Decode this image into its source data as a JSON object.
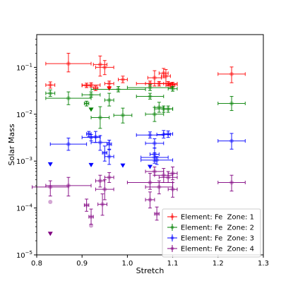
{
  "chart_data": {
    "type": "scatter",
    "title": "",
    "xlabel": "Stretch",
    "ylabel": "Solar Mass",
    "xlim": [
      0.8,
      1.3
    ],
    "ylim": [
      1e-05,
      0.5
    ],
    "yscale": "log",
    "xticks": [
      {
        "value": 0.8,
        "label": "0.8"
      },
      {
        "value": 0.9,
        "label": "0.9"
      },
      {
        "value": 1.0,
        "label": "1.0"
      },
      {
        "value": 1.1,
        "label": "1.1"
      },
      {
        "value": 1.2,
        "label": "1.2"
      },
      {
        "value": 1.3,
        "label": "1.3"
      }
    ],
    "yticks": [
      {
        "value": 1e-05,
        "base": "10",
        "exp": "−5"
      },
      {
        "value": 0.0001,
        "base": "10",
        "exp": "−4"
      },
      {
        "value": 0.001,
        "base": "10",
        "exp": "−3"
      },
      {
        "value": 0.01,
        "base": "10",
        "exp": "−2"
      },
      {
        "value": 0.1,
        "base": "10",
        "exp": "−1"
      }
    ],
    "grid": false,
    "legend_position": "lower right",
    "series": [
      {
        "name": "Element: Fe  Zone: 1",
        "color": "#ff0000",
        "points": [
          {
            "x": 0.83,
            "y": 0.042,
            "xerr": 0.01,
            "yerr": [
              0.006,
              0.007
            ]
          },
          {
            "x": 0.87,
            "y": 0.12,
            "xerr": 0.05,
            "yerr": [
              0.04,
              0.08
            ]
          },
          {
            "x": 0.91,
            "y": 0.041,
            "xerr": 0.01,
            "yerr": [
              0.004,
              0.005
            ]
          },
          {
            "x": 0.92,
            "y": 0.042,
            "xerr": 0.02,
            "yerr": [
              0.004,
              0.005
            ]
          },
          {
            "x": 0.93,
            "y": 0.036,
            "xerr": 0.005,
            "yerr": [
              0.004,
              0.004
            ]
          },
          {
            "x": 0.94,
            "y": 0.115,
            "xerr": 0.015,
            "yerr": [
              0.05,
              0.06
            ]
          },
          {
            "x": 0.95,
            "y": 0.1,
            "xerr": 0.02,
            "yerr": [
              0.03,
              0.04
            ]
          },
          {
            "x": 0.96,
            "y": 0.045,
            "xerr": 0.01,
            "yerr": [
              0.006,
              0.006
            ]
          },
          {
            "x": 0.99,
            "y": 0.055,
            "xerr": 0.01,
            "yerr": [
              0.008,
              0.01
            ]
          },
          {
            "x": 1.05,
            "y": 0.045,
            "xerr": 0.03,
            "yerr": [
              0.005,
              0.006
            ]
          },
          {
            "x": 1.06,
            "y": 0.06,
            "xerr": 0.015,
            "yerr": [
              0.02,
              0.025
            ]
          },
          {
            "x": 1.07,
            "y": 0.045,
            "xerr": 0.03,
            "yerr": [
              0.005,
              0.005
            ]
          },
          {
            "x": 1.08,
            "y": 0.075,
            "xerr": 0.01,
            "yerr": [
              0.015,
              0.02
            ]
          },
          {
            "x": 1.085,
            "y": 0.065,
            "xerr": 0.01,
            "yerr": [
              0.02,
              0.025
            ]
          },
          {
            "x": 1.09,
            "y": 0.045,
            "xerr": 0.02,
            "yerr": [
              0.005,
              0.005
            ]
          },
          {
            "x": 1.095,
            "y": 0.042,
            "xerr": 0.01,
            "yerr": [
              0.005,
              0.005
            ]
          },
          {
            "x": 1.1,
            "y": 0.043,
            "xerr": 0.01,
            "yerr": [
              0.005,
              0.005
            ]
          },
          {
            "x": 1.23,
            "y": 0.072,
            "xerr": 0.03,
            "yerr": [
              0.025,
              0.03
            ]
          }
        ],
        "upper_limits": [
          {
            "x": 0.96,
            "y": 0.035
          }
        ]
      },
      {
        "name": "Element: Fe  Zone: 2",
        "color": "#008000",
        "points": [
          {
            "x": 0.83,
            "y": 0.028,
            "xerr": 0.01,
            "yerr": [
              0.004,
              0.005
            ]
          },
          {
            "x": 0.87,
            "y": 0.022,
            "xerr": 0.05,
            "yerr": [
              0.006,
              0.008
            ]
          },
          {
            "x": 0.91,
            "y": 0.017,
            "xerr": 0.005,
            "yerr": [
              0.002,
              0.002
            ]
          },
          {
            "x": 0.92,
            "y": 0.026,
            "xerr": 0.02,
            "yerr": [
              0.003,
              0.004
            ]
          },
          {
            "x": 0.94,
            "y": 0.0085,
            "xerr": 0.02,
            "yerr": [
              0.0035,
              0.006
            ]
          },
          {
            "x": 0.96,
            "y": 0.02,
            "xerr": 0.01,
            "yerr": [
              0.005,
              0.008
            ]
          },
          {
            "x": 0.98,
            "y": 0.034,
            "xerr": 0.06,
            "yerr": [
              0.004,
              0.005
            ]
          },
          {
            "x": 0.99,
            "y": 0.0095,
            "xerr": 0.02,
            "yerr": [
              0.003,
              0.004
            ]
          },
          {
            "x": 1.05,
            "y": 0.037,
            "xerr": 0.05,
            "yerr": [
              0.005,
              0.006
            ]
          },
          {
            "x": 1.05,
            "y": 0.024,
            "xerr": 0.03,
            "yerr": [
              0.003,
              0.004
            ]
          },
          {
            "x": 1.06,
            "y": 0.01,
            "xerr": 0.02,
            "yerr": [
              0.003,
              0.004
            ]
          },
          {
            "x": 1.07,
            "y": 0.014,
            "xerr": 0.01,
            "yerr": [
              0.003,
              0.004
            ]
          },
          {
            "x": 1.08,
            "y": 0.013,
            "xerr": 0.02,
            "yerr": [
              0.002,
              0.002
            ]
          },
          {
            "x": 1.09,
            "y": 0.013,
            "xerr": 0.01,
            "yerr": [
              0.002,
              0.002
            ]
          },
          {
            "x": 1.1,
            "y": 0.035,
            "xerr": 0.01,
            "yerr": [
              0.004,
              0.004
            ]
          },
          {
            "x": 1.23,
            "y": 0.017,
            "xerr": 0.03,
            "yerr": [
              0.005,
              0.007
            ]
          }
        ],
        "upper_limits": [
          {
            "x": 0.92,
            "y": 0.0125
          }
        ]
      },
      {
        "name": "Element: Fe  Zone: 3",
        "color": "#0000ff",
        "points": [
          {
            "x": 0.87,
            "y": 0.0023,
            "xerr": 0.04,
            "yerr": [
              0.0006,
              0.0008
            ]
          },
          {
            "x": 0.915,
            "y": 0.0038,
            "xerr": 0.005,
            "yerr": [
              0.0005,
              0.0005
            ]
          },
          {
            "x": 0.92,
            "y": 0.0032,
            "xerr": 0.02,
            "yerr": [
              0.0005,
              0.0005
            ]
          },
          {
            "x": 0.93,
            "y": 0.0033,
            "xerr": 0.01,
            "yerr": [
              0.0008,
              0.001
            ]
          },
          {
            "x": 0.94,
            "y": 0.0025,
            "xerr": 0.02,
            "yerr": [
              0.0008,
              0.001
            ]
          },
          {
            "x": 0.96,
            "y": 0.0023,
            "xerr": 0.005,
            "yerr": [
              0.0005,
              0.0005
            ]
          },
          {
            "x": 0.95,
            "y": 0.0015,
            "xerr": 0.005,
            "yerr": [
              0.0005,
              0.0006
            ]
          },
          {
            "x": 0.96,
            "y": 0.00125,
            "xerr": 0.01,
            "yerr": [
              0.0004,
              0.0005
            ]
          },
          {
            "x": 1.05,
            "y": 0.0036,
            "xerr": 0.03,
            "yerr": [
              0.0005,
              0.0006
            ]
          },
          {
            "x": 1.06,
            "y": 0.0024,
            "xerr": 0.02,
            "yerr": [
              0.0005,
              0.0006
            ]
          },
          {
            "x": 1.06,
            "y": 0.0014,
            "xerr": 0.01,
            "yerr": [
              0.0004,
              0.0005
            ]
          },
          {
            "x": 1.06,
            "y": 0.0012,
            "xerr": 0.03,
            "yerr": [
              0.0003,
              0.0003
            ]
          },
          {
            "x": 1.065,
            "y": 0.00105,
            "xerr": 0.035,
            "yerr": [
              0.0002,
              0.0002
            ]
          },
          {
            "x": 1.08,
            "y": 0.0037,
            "xerr": 0.015,
            "yerr": [
              0.0006,
              0.0008
            ]
          },
          {
            "x": 1.09,
            "y": 0.0038,
            "xerr": 0.01,
            "yerr": [
              0.0006,
              0.0006
            ]
          },
          {
            "x": 1.23,
            "y": 0.0027,
            "xerr": 0.03,
            "yerr": [
              0.0009,
              0.0012
            ]
          }
        ],
        "upper_limits": [
          {
            "x": 0.83,
            "y": 0.00085
          },
          {
            "x": 0.92,
            "y": 0.00082
          },
          {
            "x": 0.99,
            "y": 0.0008
          },
          {
            "x": 1.05,
            "y": 0.00075
          }
        ]
      },
      {
        "name": "Element: Fe  Zone: 4",
        "color": "#800080",
        "points": [
          {
            "x": 0.83,
            "y": 0.00028,
            "xerr": 0.04,
            "yerr": [
              0.0001,
              0.0001
            ]
          },
          {
            "x": 0.83,
            "y": 0.000135,
            "xerr": 0.0,
            "yerr": [
              0.0,
              0.0
            ]
          },
          {
            "x": 0.87,
            "y": 0.0003,
            "xerr": 0.05,
            "yerr": [
              0.00012,
              0.00015
            ]
          },
          {
            "x": 0.91,
            "y": 0.000115,
            "xerr": 0.005,
            "yerr": [
              3e-05,
              4e-05
            ]
          },
          {
            "x": 0.92,
            "y": 6.5e-05,
            "xerr": 0.005,
            "yerr": [
              2e-05,
              3e-05
            ]
          },
          {
            "x": 0.92,
            "y": 4.2e-05,
            "xerr": 0.0,
            "yerr": [
              0.0,
              0.0
            ]
          },
          {
            "x": 0.94,
            "y": 0.00038,
            "xerr": 0.01,
            "yerr": [
              0.0001,
              0.00012
            ]
          },
          {
            "x": 0.95,
            "y": 0.00025,
            "xerr": 0.02,
            "yerr": [
              0.0001,
              0.00015
            ]
          },
          {
            "x": 0.945,
            "y": 0.00012,
            "xerr": 0.01,
            "yerr": [
              5e-05,
              8e-05
            ]
          },
          {
            "x": 0.96,
            "y": 0.00045,
            "xerr": 0.01,
            "yerr": [
              0.0001,
              0.00012
            ]
          },
          {
            "x": 1.05,
            "y": 0.00035,
            "xerr": 0.05,
            "yerr": [
              0.0001,
              0.0002
            ]
          },
          {
            "x": 1.05,
            "y": 0.00015,
            "xerr": 0.01,
            "yerr": [
              5e-05,
              7e-05
            ]
          },
          {
            "x": 1.06,
            "y": 0.0006,
            "xerr": 0.02,
            "yerr": [
              0.0001,
              0.00015
            ]
          },
          {
            "x": 1.065,
            "y": 7.5e-05,
            "xerr": 0.005,
            "yerr": [
              2e-05,
              3e-05
            ]
          },
          {
            "x": 1.07,
            "y": 0.00028,
            "xerr": 0.03,
            "yerr": [
              8e-05,
              0.0001
            ]
          },
          {
            "x": 1.08,
            "y": 0.0005,
            "xerr": 0.02,
            "yerr": [
              0.00015,
              0.0002
            ]
          },
          {
            "x": 1.09,
            "y": 0.00045,
            "xerr": 0.02,
            "yerr": [
              0.0001,
              0.00015
            ]
          },
          {
            "x": 1.1,
            "y": 0.00055,
            "xerr": 0.01,
            "yerr": [
              0.00015,
              0.0002
            ]
          },
          {
            "x": 1.1,
            "y": 0.00025,
            "xerr": 0.01,
            "yerr": [
              8e-05,
              0.0001
            ]
          },
          {
            "x": 1.23,
            "y": 0.00035,
            "xerr": 0.03,
            "yerr": [
              0.00012,
              0.00015
            ]
          }
        ],
        "upper_limits": [
          {
            "x": 0.83,
            "y": 2.8e-05
          }
        ]
      }
    ]
  }
}
